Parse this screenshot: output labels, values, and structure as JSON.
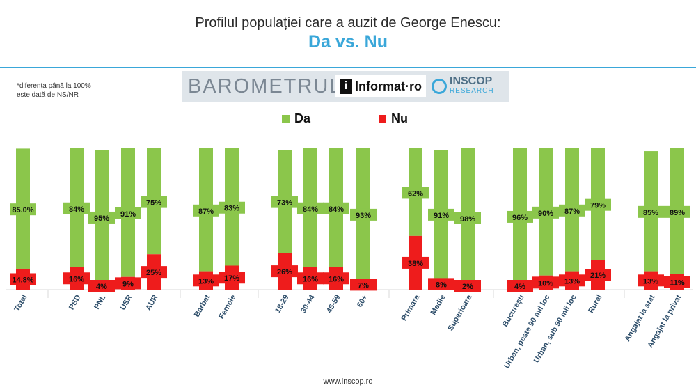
{
  "header": {
    "title": "Profilul populației care a auzit de George Enescu:",
    "subtitle": "Da vs. Nu"
  },
  "footnote": {
    "line1": "*diferența până la 100%",
    "line2": "este dată de NS/NR"
  },
  "logos": {
    "barometrul": "BAROMETRUL",
    "informat_mark": "i",
    "informat": "Informat·ro",
    "inscop": "INSCOP",
    "inscop_sub": "RESEARCH"
  },
  "footer": {
    "website": "www.inscop.ro"
  },
  "colors": {
    "da": "#8bc64b",
    "nu": "#ee1c1c",
    "accent": "#3aa7d9",
    "tick_label": "#2f4f6b"
  },
  "chart_data": {
    "type": "bar",
    "stacked": true,
    "grid": false,
    "legend_position": "top-center",
    "ylim": [
      0,
      100
    ],
    "categories": [
      "Total",
      "PSD",
      "PNL",
      "USR",
      "AUR",
      "Barbat",
      "Femeie",
      "18-29",
      "30-44",
      "45-59",
      "60+",
      "Primara",
      "Medie",
      "Superioara",
      "București",
      "Urban, peste 90 mii loc",
      "Urban, sub 90 mii loc",
      "Rural",
      "Angajat la stat",
      "Angajat la privat"
    ],
    "groups": [
      [
        0
      ],
      [
        1,
        2,
        3,
        4
      ],
      [
        5,
        6
      ],
      [
        7,
        8,
        9,
        10
      ],
      [
        11,
        12,
        13
      ],
      [
        14,
        15,
        16,
        17
      ],
      [
        18,
        19
      ]
    ],
    "series": [
      {
        "name": "Nu",
        "values": [
          14.8,
          16,
          4,
          9,
          25,
          13,
          17,
          26,
          16,
          16,
          7,
          38,
          8,
          2,
          4,
          10,
          13,
          21,
          13,
          11
        ],
        "labels": [
          "14.8%",
          "16%",
          "4%",
          "9%",
          "25%",
          "13%",
          "17%",
          "26%",
          "16%",
          "16%",
          "7%",
          "38%",
          "8%",
          "2%",
          "4%",
          "10%",
          "13%",
          "21%",
          "13%",
          "11%"
        ]
      },
      {
        "name": "Da",
        "values": [
          85.0,
          84,
          95,
          91,
          75,
          87,
          83,
          73,
          84,
          84,
          93,
          62,
          91,
          98,
          96,
          90,
          87,
          79,
          85,
          89
        ],
        "labels": [
          "85.0%",
          "84%",
          "95%",
          "91%",
          "75%",
          "87%",
          "83%",
          "73%",
          "84%",
          "84%",
          "93%",
          "62%",
          "91%",
          "98%",
          "96%",
          "90%",
          "87%",
          "79%",
          "85%",
          "89%"
        ]
      }
    ]
  }
}
